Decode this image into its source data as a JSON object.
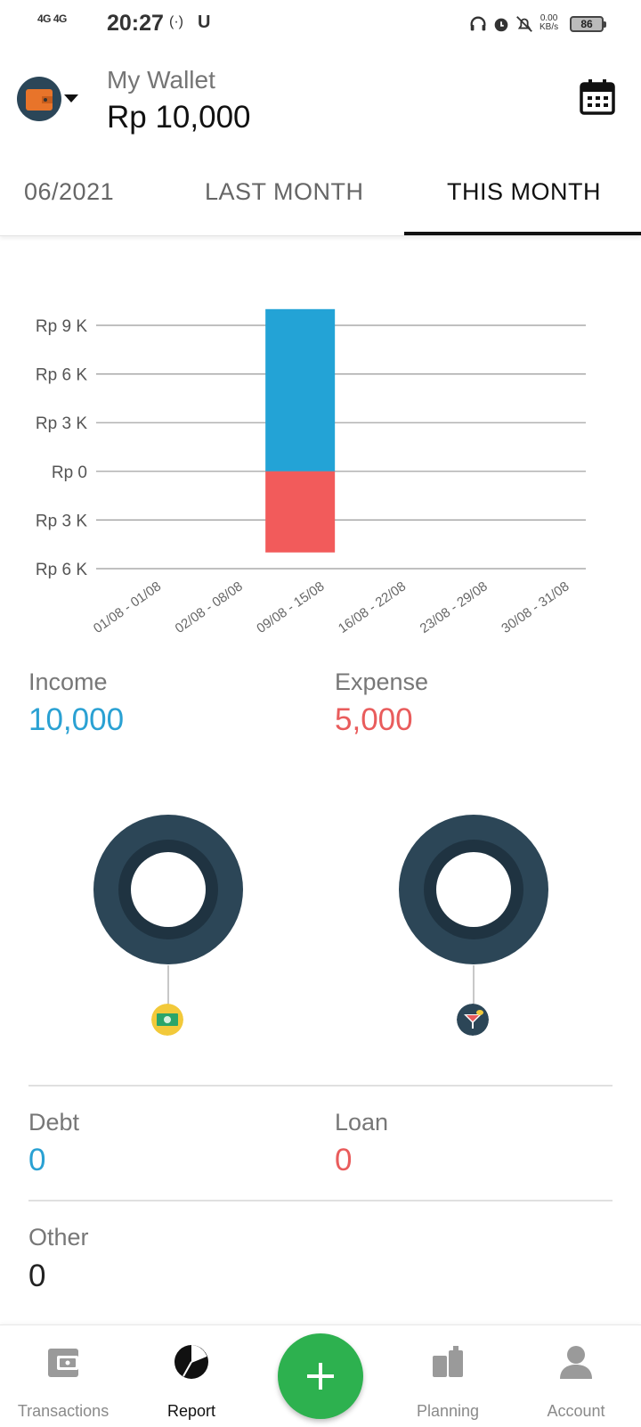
{
  "status_bar": {
    "network": "4G 4G",
    "time": "20:27",
    "extra": "(·)",
    "u": "U",
    "speed": "0.00\nKB/s",
    "battery": "86"
  },
  "header": {
    "wallet_name": "My Wallet",
    "balance": "Rp 10,000",
    "wallet_icon": "wallet-icon",
    "calendar_icon": "calendar-icon"
  },
  "tabs": [
    {
      "label": "06/2021",
      "active": false
    },
    {
      "label": "LAST MONTH",
      "active": false
    },
    {
      "label": "THIS MONTH",
      "active": true
    }
  ],
  "chart_data": {
    "type": "bar",
    "title": "",
    "categories": [
      "01/08 - 01/08",
      "02/08 - 08/08",
      "09/08 - 15/08",
      "16/08 - 22/08",
      "23/08 - 29/08",
      "30/08 - 31/08"
    ],
    "y_tick_values": [
      9000,
      6000,
      3000,
      0,
      -3000,
      -6000
    ],
    "y_tick_labels": [
      "Rp 9 K",
      "Rp 6 K",
      "Rp 3 K",
      "Rp 0",
      "Rp 3 K",
      "Rp 6 K"
    ],
    "ylim": [
      -6000,
      10000
    ],
    "grid": true,
    "series": [
      {
        "values": [
          0,
          0,
          10000,
          0,
          0,
          0
        ],
        "color": "#23a3d6"
      },
      {
        "values": [
          0,
          0,
          -5000,
          0,
          0,
          0
        ],
        "color": "#f25b5b"
      }
    ]
  },
  "summary": {
    "income_label": "Income",
    "income_value": "10,000",
    "expense_label": "Expense",
    "expense_value": "5,000"
  },
  "category_icons": {
    "income": "money-icon",
    "expense": "cocktail-icon"
  },
  "debt_loan": {
    "debt_label": "Debt",
    "debt_value": "0",
    "loan_label": "Loan",
    "loan_value": "0",
    "other_label": "Other",
    "other_value": "0"
  },
  "bottom_nav": {
    "items": [
      {
        "label": "Transactions",
        "icon": "wallet-icon",
        "active": false
      },
      {
        "label": "Report",
        "icon": "pie-chart-icon",
        "active": true
      },
      {
        "label": "Planning",
        "icon": "planning-icon",
        "active": false
      },
      {
        "label": "Account",
        "icon": "person-icon",
        "active": false
      }
    ],
    "add_icon": "plus-icon"
  },
  "colors": {
    "income": "#2aa1d3",
    "expense": "#e95c5c",
    "fab": "#2db14f",
    "donut": "#2c4657"
  }
}
